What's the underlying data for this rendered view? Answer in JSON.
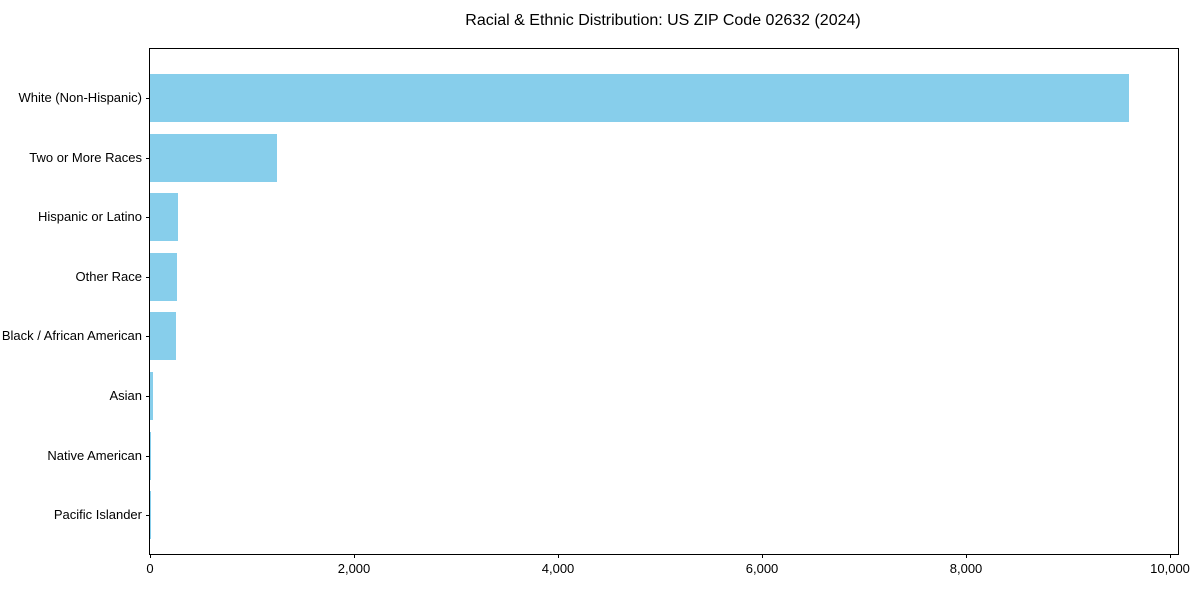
{
  "chart_data": {
    "type": "bar",
    "orientation": "horizontal",
    "title": "Racial & Ethnic Distribution: US ZIP Code 02632 (2024)",
    "categories": [
      "White (Non-Hispanic)",
      "Two or More Races",
      "Hispanic or Latino",
      "Other Race",
      "Black / African American",
      "Asian",
      "Native American",
      "Pacific Islander"
    ],
    "values": [
      9596,
      1245,
      272,
      268,
      255,
      28,
      10,
      2
    ],
    "xlabel": "",
    "ylabel": "",
    "xlim": [
      0,
      10078
    ],
    "x_ticks": [
      0,
      2000,
      4000,
      6000,
      8000,
      10000
    ],
    "x_tick_labels": [
      "0",
      "2,000",
      "4,000",
      "6,000",
      "8,000",
      "10,000"
    ],
    "bar_color": "#87CEEB",
    "axis_color": "#000000",
    "text_color": "#000000",
    "background_color": "#FFFFFF",
    "grid": false,
    "legend": false
  }
}
